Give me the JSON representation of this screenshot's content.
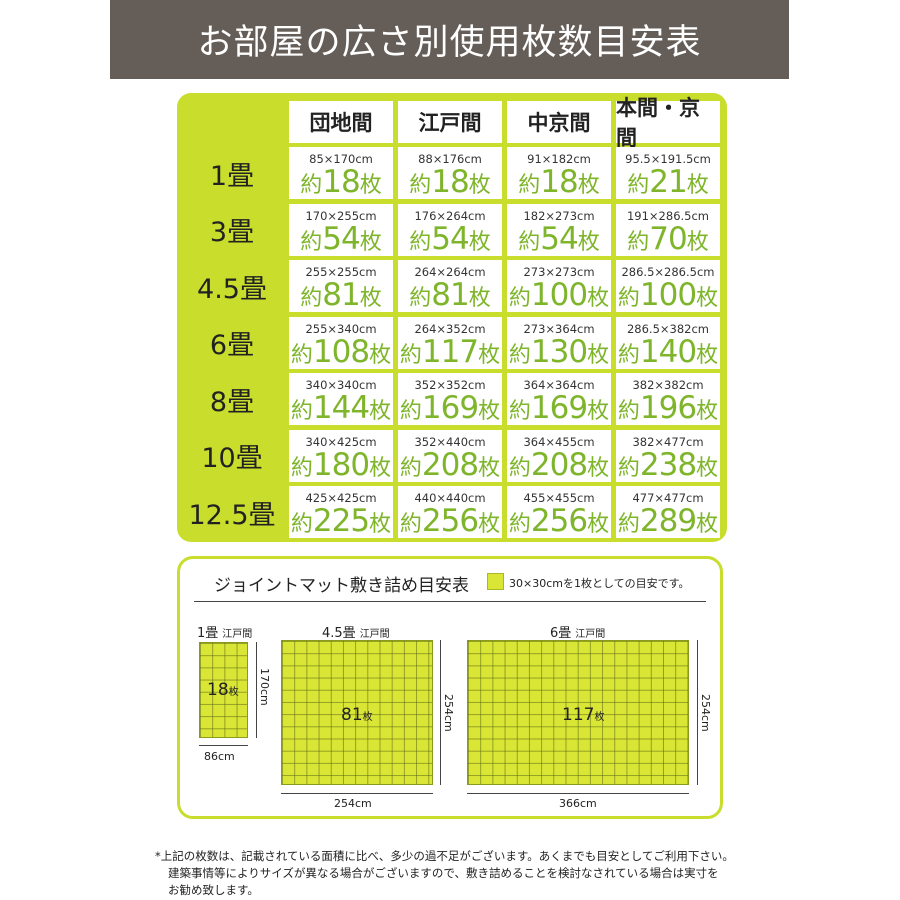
{
  "header": {
    "title": "お部屋の広さ別使用枚数目安表"
  },
  "table": {
    "columns": [
      "団地間",
      "江戸間",
      "中京間",
      "本間・京間"
    ],
    "count_prefix": "約",
    "count_suffix": "枚",
    "rows": [
      {
        "label": "1畳",
        "cells": [
          {
            "dim": "85×170cm",
            "count": "18"
          },
          {
            "dim": "88×176cm",
            "count": "18"
          },
          {
            "dim": "91×182cm",
            "count": "18"
          },
          {
            "dim": "95.5×191.5cm",
            "count": "21"
          }
        ]
      },
      {
        "label": "3畳",
        "cells": [
          {
            "dim": "170×255cm",
            "count": "54"
          },
          {
            "dim": "176×264cm",
            "count": "54"
          },
          {
            "dim": "182×273cm",
            "count": "54"
          },
          {
            "dim": "191×286.5cm",
            "count": "70"
          }
        ]
      },
      {
        "label": "4.5畳",
        "cells": [
          {
            "dim": "255×255cm",
            "count": "81"
          },
          {
            "dim": "264×264cm",
            "count": "81"
          },
          {
            "dim": "273×273cm",
            "count": "100"
          },
          {
            "dim": "286.5×286.5cm",
            "count": "100"
          }
        ]
      },
      {
        "label": "6畳",
        "cells": [
          {
            "dim": "255×340cm",
            "count": "108"
          },
          {
            "dim": "264×352cm",
            "count": "117"
          },
          {
            "dim": "273×364cm",
            "count": "130"
          },
          {
            "dim": "286.5×382cm",
            "count": "140"
          }
        ]
      },
      {
        "label": "8畳",
        "cells": [
          {
            "dim": "340×340cm",
            "count": "144"
          },
          {
            "dim": "352×352cm",
            "count": "169"
          },
          {
            "dim": "364×364cm",
            "count": "169"
          },
          {
            "dim": "382×382cm",
            "count": "196"
          }
        ]
      },
      {
        "label": "10畳",
        "cells": [
          {
            "dim": "340×425cm",
            "count": "180"
          },
          {
            "dim": "352×440cm",
            "count": "208"
          },
          {
            "dim": "364×455cm",
            "count": "208"
          },
          {
            "dim": "382×477cm",
            "count": "238"
          }
        ]
      },
      {
        "label": "12.5畳",
        "cells": [
          {
            "dim": "425×425cm",
            "count": "225"
          },
          {
            "dim": "440×440cm",
            "count": "256"
          },
          {
            "dim": "455×455cm",
            "count": "256"
          },
          {
            "dim": "477×477cm",
            "count": "289"
          }
        ]
      }
    ]
  },
  "guide": {
    "title": "ジョイントマット敷き詰め目安表",
    "legend": "30×30cmを1枚としての目安です。",
    "count_suffix": "枚",
    "mats": [
      {
        "size": "1畳",
        "type": "江戸間",
        "count": "18",
        "height": "170cm",
        "width": "86cm"
      },
      {
        "size": "4.5畳",
        "type": "江戸間",
        "count": "81",
        "height": "254cm",
        "width": "254cm"
      },
      {
        "size": "6畳",
        "type": "江戸間",
        "count": "117",
        "height": "254cm",
        "width": "366cm"
      }
    ]
  },
  "note": {
    "mark": "*",
    "line1": "上記の枚数は、記載されている面積に比べ、多少の過不足がございます。あくまでも目安としてご利用下さい。",
    "line2": "建築事情等によりサイズが異なる場合がございますので、敷き詰めることを検討なされている場合は実寸を",
    "line3": "お勧め致します。"
  },
  "colors": {
    "banner": "#655d57",
    "accent": "#c8dd2c",
    "count_text": "#7fb52b",
    "mat_fill": "#d9e635"
  }
}
